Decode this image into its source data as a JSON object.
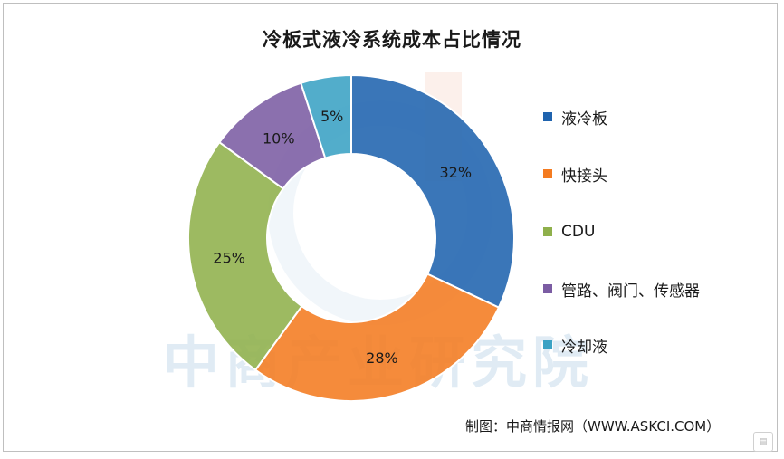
{
  "chart_data": {
    "type": "pie",
    "variant": "donut",
    "title": "冷板式液冷系统成本占比情况",
    "categories": [
      "液冷板",
      "快接头",
      "CDU",
      "管路、阀门、传感器",
      "冷却液"
    ],
    "values": [
      32,
      28,
      25,
      10,
      5
    ],
    "data_labels": [
      "32%",
      "28%",
      "25%",
      "10%",
      "5%"
    ],
    "colors": [
      "#1f63ae",
      "#f47b20",
      "#8fb04b",
      "#7b5ca3",
      "#3aa2c4"
    ],
    "legend_position": "right",
    "start_angle_deg": 0,
    "direction": "clockwise"
  },
  "watermark": "中商产业研究院",
  "source": "制图：中商情报网（WWW.ASKCI.COM）"
}
